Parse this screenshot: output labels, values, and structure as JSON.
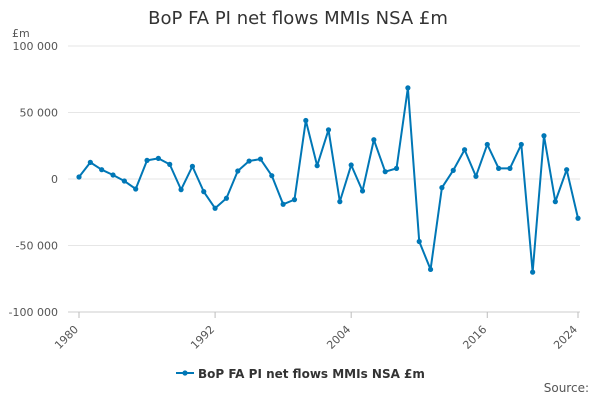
{
  "chart_data": {
    "type": "line",
    "title": "BoP FA PI net flows MMIs NSA £m",
    "ylabel_unit": "£m",
    "x_ticks": [
      "1980",
      "1992",
      "2004",
      "2016",
      "2024"
    ],
    "y_ticks": [
      "100 000",
      "50 000",
      "0",
      "-50 000",
      "-100 000"
    ],
    "y_tick_values": [
      100000,
      50000,
      0,
      -50000,
      -100000
    ],
    "ylim": [
      -100000,
      100000
    ],
    "xlim": [
      1980,
      2024
    ],
    "grid": true,
    "legend_position": "bottom",
    "series": [
      {
        "name": "BoP FA PI net flows MMIs NSA £m",
        "color": "#0077b6",
        "x": [
          1980,
          1981,
          1982,
          1983,
          1984,
          1985,
          1986,
          1987,
          1988,
          1989,
          1990,
          1991,
          1992,
          1993,
          1994,
          1995,
          1996,
          1997,
          1998,
          1999,
          2000,
          2001,
          2002,
          2003,
          2004,
          2005,
          2006,
          2007,
          2008,
          2009,
          2010,
          2011,
          2012,
          2013,
          2014,
          2015,
          2016,
          2017,
          2018,
          2019,
          2020,
          2021,
          2022,
          2023,
          2024
        ],
        "values": [
          1500,
          12500,
          7000,
          3000,
          -1500,
          -7500,
          14000,
          15500,
          11000,
          -8000,
          9500,
          -9500,
          -22000,
          -14500,
          6000,
          13500,
          15000,
          2500,
          -19000,
          -15500,
          44000,
          10000,
          37000,
          -17000,
          10500,
          -9000,
          29500,
          5500,
          8000,
          68500,
          -47000,
          -68000,
          -6500,
          6500,
          22000,
          2000,
          26000,
          8000,
          8000,
          26000,
          -70000,
          32500,
          -17000,
          7000,
          -29500
        ]
      }
    ]
  },
  "legend": {
    "label": "BoP FA PI net flows MMIs NSA £m"
  },
  "source_label": "Source:"
}
